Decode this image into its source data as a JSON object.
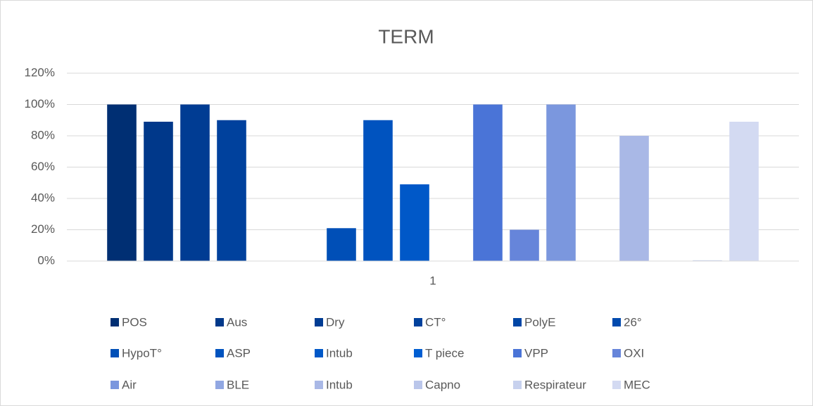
{
  "chart_data": {
    "type": "bar",
    "title": "TERM",
    "categories": [
      "1"
    ],
    "series": [
      {
        "name": "POS",
        "color": "#002f73",
        "values": [
          100
        ]
      },
      {
        "name": "Aus",
        "color": "#00388a",
        "values": [
          89
        ]
      },
      {
        "name": "Dry",
        "color": "#003c93",
        "values": [
          100
        ]
      },
      {
        "name": "CT°",
        "color": "#00419d",
        "values": [
          90
        ]
      },
      {
        "name": "PolyE",
        "color": "#0046a6",
        "values": [
          0
        ]
      },
      {
        "name": "26°",
        "color": "#004aae",
        "values": [
          0
        ]
      },
      {
        "name": "HypoT°",
        "color": "#004fb7",
        "values": [
          21
        ]
      },
      {
        "name": "ASP",
        "color": "#0053bf",
        "values": [
          90
        ]
      },
      {
        "name": "Intub",
        "color": "#0058c8",
        "values": [
          49
        ]
      },
      {
        "name": "T piece",
        "color": "#005ed2",
        "values": [
          0
        ]
      },
      {
        "name": "VPP",
        "color": "#4a74d7",
        "values": [
          100
        ]
      },
      {
        "name": "OXI",
        "color": "#6685da",
        "values": [
          20
        ]
      },
      {
        "name": "Air",
        "color": "#7b97de",
        "values": [
          100
        ]
      },
      {
        "name": "BLE",
        "color": "#91a7e2",
        "values": [
          0
        ]
      },
      {
        "name": "Intub",
        "color": "#a9b8e6",
        "values": [
          80
        ]
      },
      {
        "name": "Capno",
        "color": "#bac6ea",
        "values": [
          0
        ]
      },
      {
        "name": "Respirateur",
        "color": "#c7d1ee",
        "values": [
          0.5
        ]
      },
      {
        "name": "MEC",
        "color": "#d3daf2",
        "values": [
          89
        ]
      }
    ],
    "ylim": [
      0,
      120
    ],
    "yticks": [
      {
        "value": 0,
        "label": "0%"
      },
      {
        "value": 20,
        "label": "20%"
      },
      {
        "value": 40,
        "label": "40%"
      },
      {
        "value": 60,
        "label": "60%"
      },
      {
        "value": 80,
        "label": "80%"
      },
      {
        "value": 100,
        "label": "100%"
      },
      {
        "value": 120,
        "label": "120%"
      }
    ],
    "grid": true
  }
}
